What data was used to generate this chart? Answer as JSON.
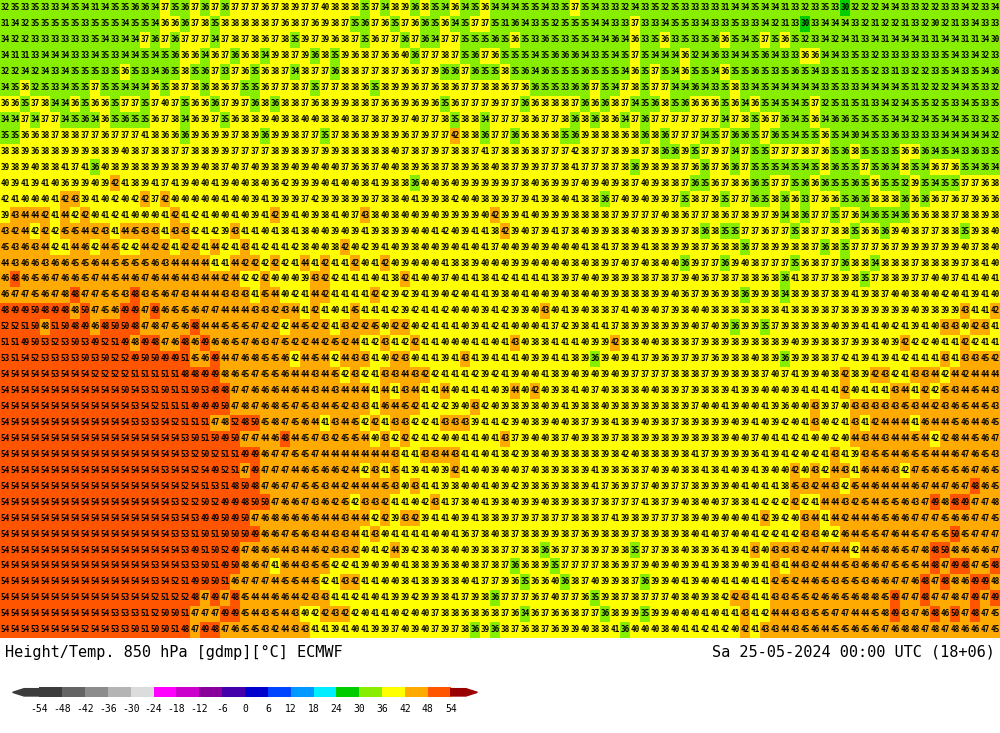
{
  "title_left": "Height/Temp. 850 hPa [gdmp][°C] ECMWF",
  "title_right": "Sa 25-05-2024 00:00 UTC (18+06)",
  "colorbar_ticks": [
    -54,
    -48,
    -42,
    -36,
    -30,
    -24,
    -18,
    -12,
    -6,
    0,
    6,
    12,
    18,
    24,
    30,
    36,
    42,
    48,
    54
  ],
  "segment_colors": [
    "#3c3c3c",
    "#646464",
    "#8c8c8c",
    "#b4b4b4",
    "#dcdcdc",
    "#ff00ff",
    "#cc00cc",
    "#880099",
    "#4400aa",
    "#0000cc",
    "#0044ff",
    "#0099ff",
    "#00eeff",
    "#00cc00",
    "#88ee00",
    "#ffff00",
    "#ffaa00",
    "#ff5500",
    "#cc0000"
  ],
  "arrow_left_color": "#3c3c3c",
  "arrow_right_color": "#990000",
  "figsize": [
    10.0,
    7.33
  ],
  "dpi": 100,
  "bg_color": "#ffffff",
  "nrows": 40,
  "ncols": 100,
  "text_fontsize": 5.5,
  "title_fontsize": 11,
  "cb_tick_fontsize": 7
}
